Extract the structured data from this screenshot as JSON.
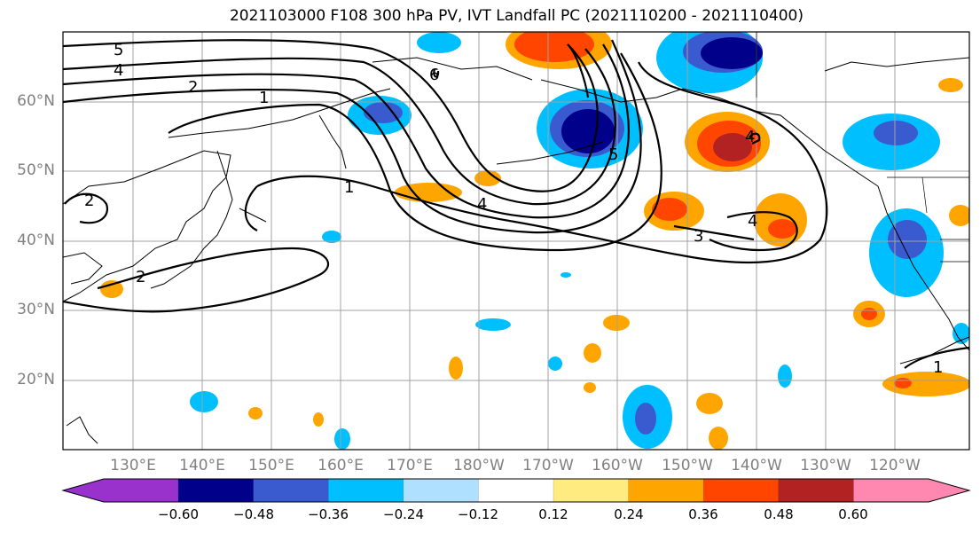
{
  "title": "2021103000 F108 300 hPa PV, IVT Landfall PC (2021110200 - 2021110400)",
  "map": {
    "lat_labels": [
      "60°N",
      "50°N",
      "40°N",
      "30°N",
      "20°N"
    ],
    "lon_labels": [
      "130°E",
      "140°E",
      "150°E",
      "160°E",
      "170°E",
      "180°W",
      "170°W",
      "160°W",
      "150°W",
      "140°W",
      "130°W",
      "120°W"
    ],
    "contour_labels": [
      "5",
      "4",
      "2",
      "1",
      "2",
      "2",
      "1",
      "4",
      "6",
      "5",
      "3",
      "4",
      "4",
      "1"
    ],
    "grid": true
  },
  "colorbar": {
    "tick_labels": [
      "−0.60",
      "−0.48",
      "−0.36",
      "−0.24",
      "−0.12",
      "0.12",
      "0.24",
      "0.36",
      "0.48",
      "0.60"
    ],
    "colors": [
      "#9932CC",
      "#00008B",
      "#3A5BD0",
      "#00BFFF",
      "#B0E0FF",
      "#FFFFFF",
      "#FFEB80",
      "#FFA500",
      "#FF4500",
      "#B22222",
      "#FF88B0"
    ]
  }
}
